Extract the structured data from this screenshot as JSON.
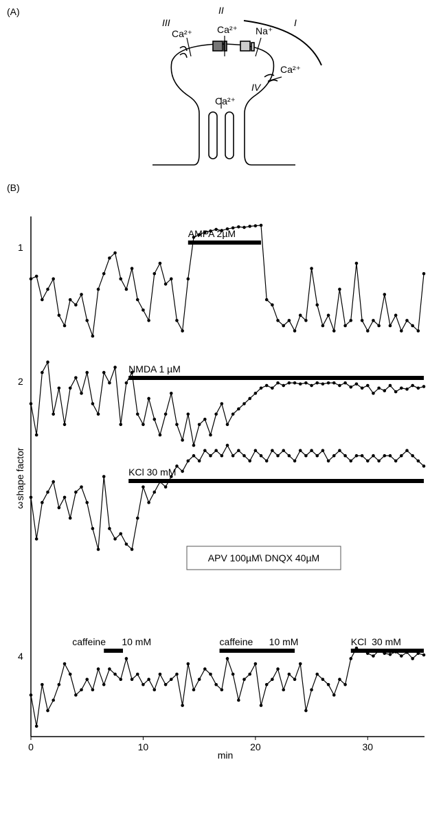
{
  "panel_labels": [
    "(A)",
    "(B)"
  ],
  "diagram": {
    "pathways": [
      "III",
      "II",
      "I",
      "IV"
    ],
    "ions": [
      "Ca²⁺",
      "Ca²⁺",
      "Na⁺",
      "Ca²⁺",
      "Ca²⁺"
    ]
  },
  "chart_data": {
    "type": "line",
    "y_label": "shape factor",
    "x_label": "min",
    "xlim": [
      0,
      35
    ],
    "xticks": [
      0,
      10,
      20,
      30
    ],
    "ylim": [
      0,
      100
    ],
    "x": [
      0,
      0.5,
      1,
      1.5,
      2,
      2.5,
      3,
      3.5,
      4,
      4.5,
      5,
      5.5,
      6,
      6.5,
      7,
      7.5,
      8,
      8.5,
      9,
      9.5,
      10,
      10.5,
      11,
      11.5,
      12,
      12.5,
      13,
      13.5,
      14,
      14.5,
      15,
      15.5,
      16,
      16.5,
      17,
      17.5,
      18,
      18.5,
      19,
      19.5,
      20,
      20.5,
      21,
      21.5,
      22,
      22.5,
      23,
      23.5,
      24,
      24.5,
      25,
      25.5,
      26,
      26.5,
      27,
      27.5,
      28,
      28.5,
      29,
      29.5,
      30,
      30.5,
      31,
      31.5,
      32,
      32.5,
      33,
      33.5,
      34,
      34.5,
      35
    ],
    "series": [
      {
        "name": "1",
        "color": "#000000",
        "values": [
          88,
          88.5,
          84,
          86,
          88,
          81,
          79,
          84,
          83,
          85,
          80,
          77,
          86,
          89,
          92,
          93,
          88,
          86,
          90,
          84,
          82,
          80,
          89,
          91,
          87,
          88,
          80,
          78,
          88,
          96,
          96.5,
          97,
          97.2,
          97.5,
          97.3,
          97.6,
          97.8,
          98,
          97.9,
          98.1,
          98.2,
          98.3,
          84,
          83,
          80,
          79,
          80,
          78,
          81,
          80,
          90,
          83,
          79,
          81,
          78,
          86,
          79,
          80,
          91,
          80,
          78,
          80,
          79,
          85,
          79,
          81,
          78,
          80,
          79,
          78,
          89
        ]
      },
      {
        "name": "2",
        "color": "#000000",
        "values": [
          64,
          58,
          70,
          72,
          62,
          67,
          60,
          67,
          69,
          66,
          70,
          64,
          62,
          70,
          68,
          71,
          60,
          68,
          70,
          62,
          60,
          65,
          61,
          58,
          62,
          66,
          60,
          57,
          62,
          56,
          60,
          61,
          58,
          62,
          64,
          60,
          62,
          63,
          64,
          65,
          66,
          67,
          67.5,
          67,
          68,
          67.5,
          68,
          68,
          67.8,
          68,
          67.5,
          68,
          67.8,
          68,
          68,
          67.5,
          68,
          67.2,
          67.8,
          67,
          67.5,
          66,
          67,
          66.5,
          67.5,
          66.3,
          67,
          66.8,
          67.5,
          67,
          67.3
        ]
      },
      {
        "name": "3",
        "color": "#000000",
        "values": [
          46,
          38,
          45,
          47,
          49,
          44,
          46,
          42,
          47,
          48,
          45,
          40,
          36,
          50,
          40,
          38,
          39,
          37,
          36,
          42,
          48,
          45,
          47,
          49,
          48,
          50,
          52,
          51,
          53,
          54,
          53,
          55,
          54,
          55,
          54,
          56,
          54,
          55,
          54,
          53,
          55,
          54,
          53,
          55,
          54,
          55,
          54,
          53,
          55,
          54,
          55,
          54,
          55,
          53,
          54,
          55,
          54,
          53,
          54,
          54,
          53,
          54,
          53,
          54,
          54,
          53,
          54,
          55,
          54,
          53,
          52
        ]
      },
      {
        "name": "4",
        "color": "#000000",
        "values": [
          8,
          2,
          10,
          5,
          7,
          10,
          14,
          12,
          8,
          9,
          11,
          9,
          13,
          10,
          13,
          12,
          11,
          15,
          11,
          12,
          10,
          11,
          9,
          12,
          10,
          11,
          12,
          6,
          14,
          9,
          11,
          13,
          12,
          10,
          9,
          15,
          12,
          7,
          11,
          12,
          14,
          6,
          10,
          11,
          13,
          9,
          12,
          11,
          14,
          5,
          9,
          12,
          11,
          10,
          8,
          11,
          10,
          15,
          17,
          16.5,
          16,
          15.5,
          16.5,
          16,
          15.8,
          16.3,
          15.5,
          16.2,
          15,
          16,
          15.7
        ]
      }
    ],
    "annotations": [
      {
        "text": "AMPA 2µM",
        "x": [
          14,
          20.5
        ]
      },
      {
        "text": "NMDA 1 µM",
        "x": [
          8.7,
          35
        ]
      },
      {
        "text": "KCl 30 mM",
        "x": [
          8.7,
          35
        ]
      },
      {
        "text": "caffeine      10 mM",
        "x": [
          6.5,
          8.2
        ]
      },
      {
        "text": "caffeine      10 mM",
        "x": [
          16.8,
          23.5
        ]
      },
      {
        "text": "KCl  30 mM",
        "x": [
          28.5,
          35
        ]
      }
    ],
    "box_note": "APV 100µM\\ DNQX 40µM"
  }
}
